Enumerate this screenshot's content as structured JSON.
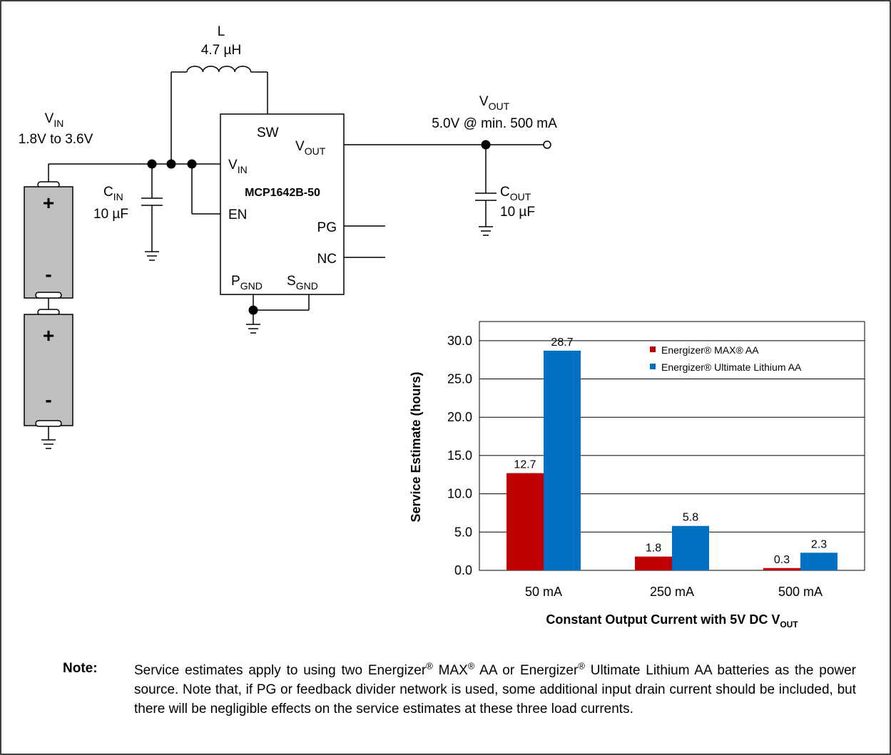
{
  "circuit": {
    "inductor": {
      "name": "L",
      "value": "4.7 µH"
    },
    "vin": {
      "label": "V",
      "sub": "IN",
      "range": "1.8V to 3.6V"
    },
    "cin": {
      "label": "C",
      "sub": "IN",
      "value": "10 µF"
    },
    "cout": {
      "label": "C",
      "sub": "OUT",
      "value": "10 µF"
    },
    "vout": {
      "label": "V",
      "sub": "OUT",
      "spec": "5.0V @ min. 500 mA"
    },
    "ic": {
      "part": "MCP1642B-50",
      "pins": {
        "sw": "SW",
        "vout": "V",
        "vout_sub": "OUT",
        "vin": "V",
        "vin_sub": "IN",
        "en": "EN",
        "pg": "PG",
        "nc": "NC",
        "pgnd": "P",
        "pgnd_sub": "GND",
        "sgnd": "S",
        "sgnd_sub": "GND"
      }
    },
    "battery_plus": "+",
    "battery_minus": "-"
  },
  "chart_data": {
    "type": "bar",
    "categories": [
      "50 mA",
      "250 mA",
      "500 mA"
    ],
    "series": [
      {
        "name": "Energizer® MAX® AA",
        "values": [
          12.7,
          1.8,
          0.3
        ],
        "color": "#c00000"
      },
      {
        "name": "Energizer® Ultimate Lithium AA",
        "values": [
          28.7,
          5.8,
          2.3
        ],
        "color": "#0070c0"
      }
    ],
    "value_labels": [
      [
        "12.7",
        "1.8",
        "0.3"
      ],
      [
        "28.7",
        "5.8",
        "2.3"
      ]
    ],
    "yticks": [
      "0.0",
      "5.0",
      "10.0",
      "15.0",
      "20.0",
      "25.0",
      "30.0"
    ],
    "ylim": [
      0,
      32.5
    ],
    "ylabel": "Service Estimate (hours)",
    "xlabel": "Constant Output Current with 5V DC V",
    "xlabel_sub": "OUT",
    "legend_position": "top-right",
    "grid": "horizontal"
  },
  "note": {
    "label": "Note:",
    "t1": "Service estimates apply to using two Energizer",
    "t2": " MAX",
    "t3": " AA or Energizer",
    "t4": " Ultimate Lithium AA batteries as the power source. Note that, if PG or feedback divider network is used, some additional input drain current should be included, but there will be negligible effects on the service estimates at these three load currents.",
    "reg": "®"
  }
}
